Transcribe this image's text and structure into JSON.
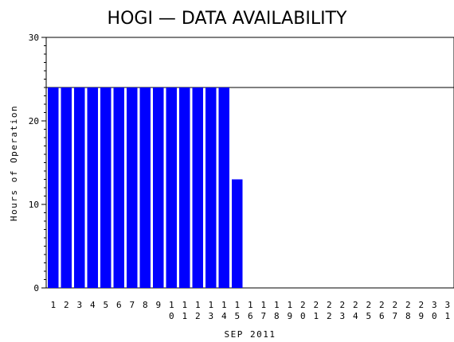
{
  "chart_data": {
    "type": "bar",
    "title": "HOGI — DATA AVAILABILITY",
    "xlabel": "SEP 2011",
    "ylabel": "Hours of Operation",
    "categories": [
      "1",
      "2",
      "3",
      "4",
      "5",
      "6",
      "7",
      "8",
      "9",
      "10",
      "11",
      "12",
      "13",
      "14",
      "15",
      "16",
      "17",
      "18",
      "19",
      "20",
      "21",
      "22",
      "23",
      "24",
      "25",
      "26",
      "27",
      "28",
      "29",
      "30",
      "31"
    ],
    "values": [
      24,
      24,
      24,
      24,
      24,
      24,
      24,
      24,
      24,
      24,
      24,
      24,
      24,
      24,
      13,
      0,
      0,
      0,
      0,
      0,
      0,
      0,
      0,
      0,
      0,
      0,
      0,
      0,
      0,
      0,
      0
    ],
    "ylim": [
      0,
      30
    ],
    "yticks": [
      "0",
      "10",
      "20",
      "30"
    ],
    "reference_line": 24,
    "bar_color": "#0000ff",
    "grid": false
  }
}
